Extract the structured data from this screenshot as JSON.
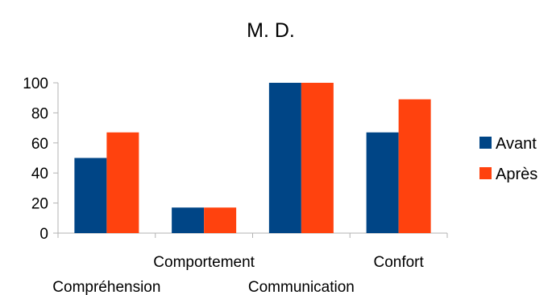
{
  "chart_data": {
    "type": "bar",
    "title": "M. D.",
    "categories": [
      "Compréhension",
      "Comportement",
      "Communication",
      "Confort"
    ],
    "series": [
      {
        "name": "Avant",
        "values": [
          50,
          17,
          100,
          67
        ],
        "color": "#004586"
      },
      {
        "name": "Après",
        "values": [
          67,
          17,
          100,
          89
        ],
        "color": "#FF420E"
      }
    ],
    "ylim": [
      0,
      100
    ],
    "yticks": [
      0,
      20,
      40,
      60,
      80,
      100
    ],
    "xlabel": "",
    "ylabel": "",
    "grid": false,
    "legend_position": "right"
  }
}
